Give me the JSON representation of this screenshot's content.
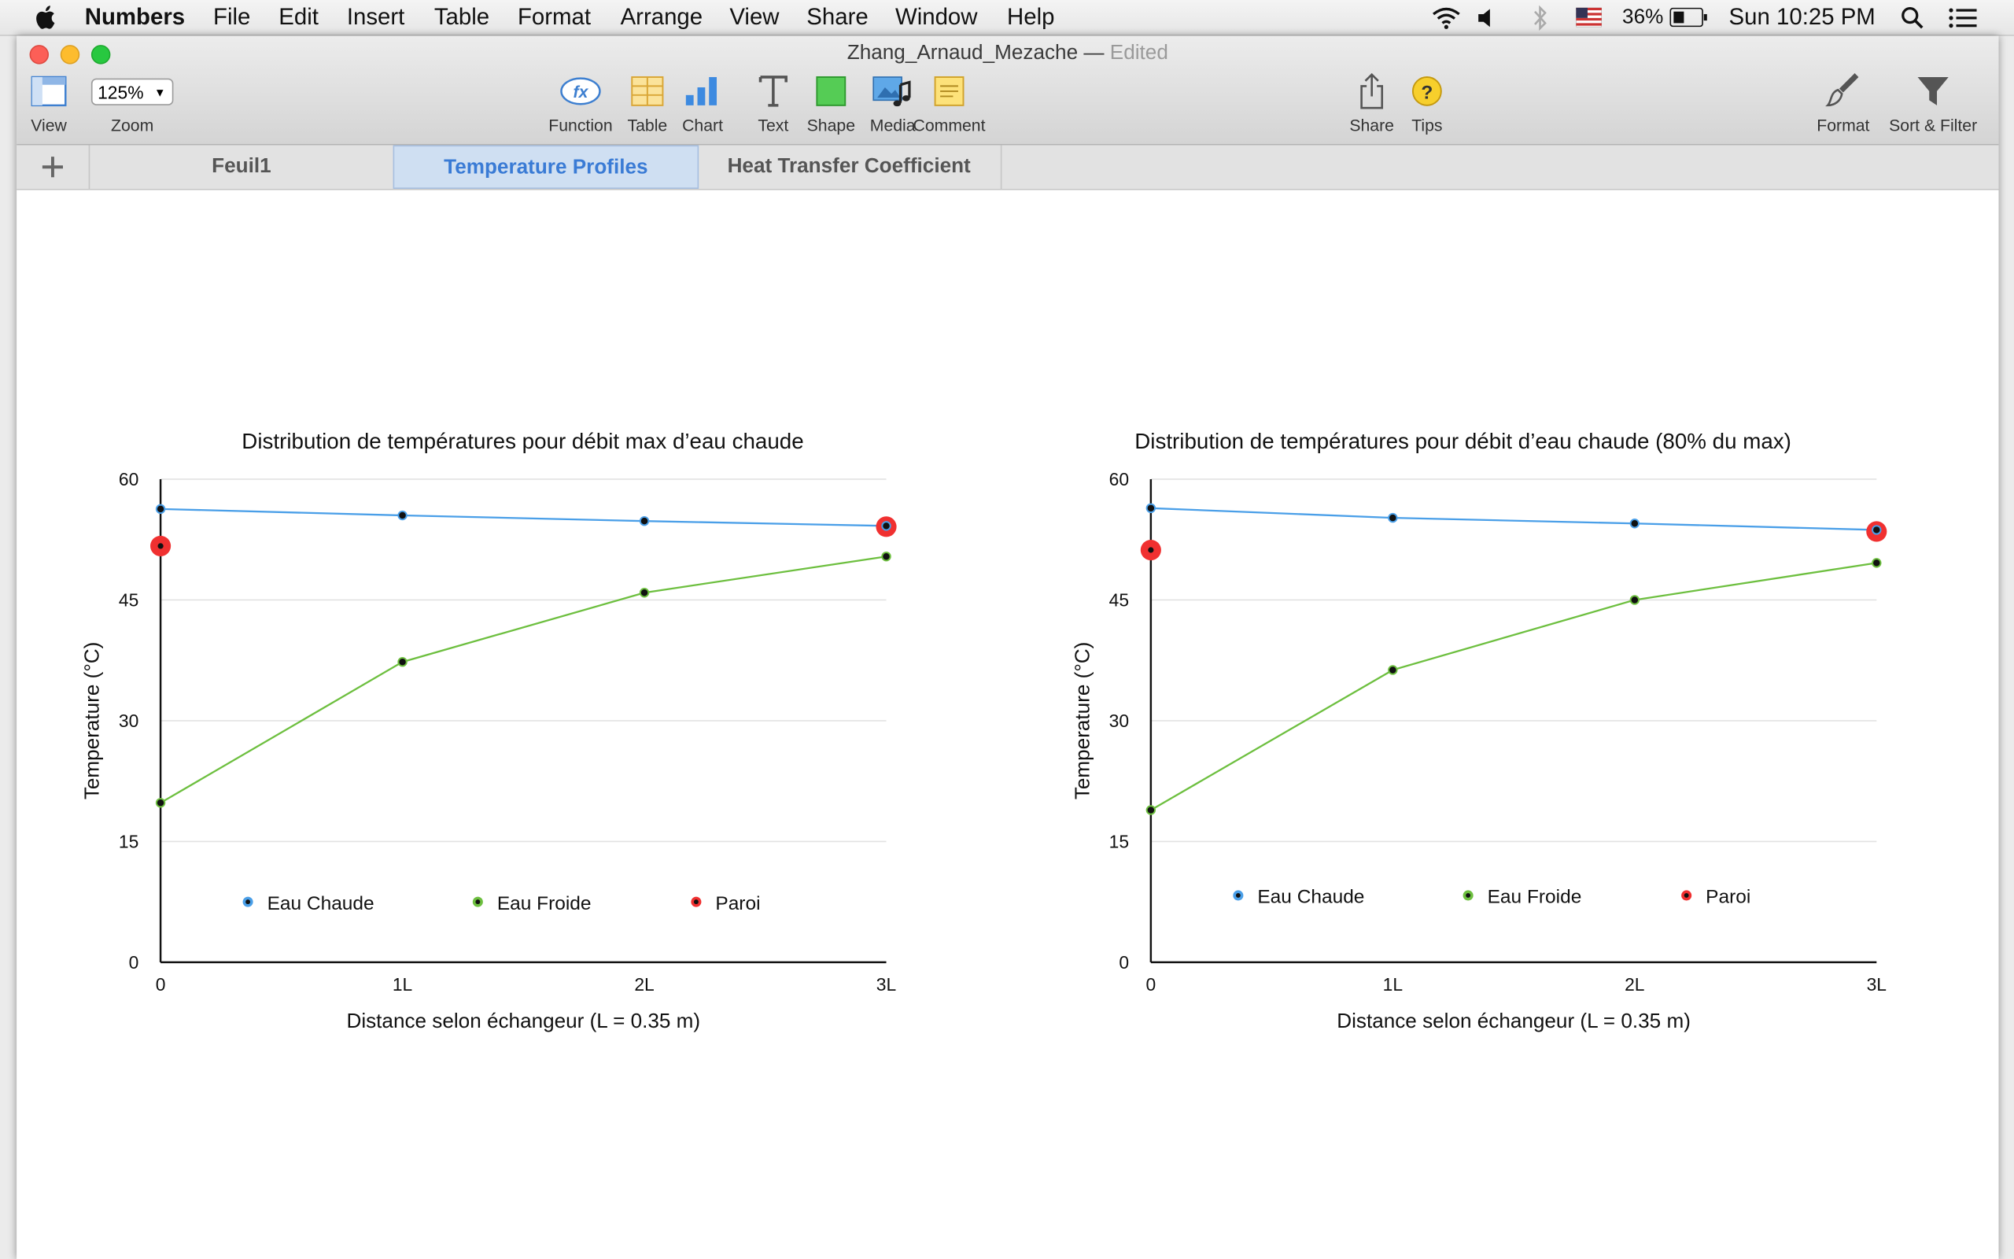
{
  "menubar": {
    "app": "Numbers",
    "items": [
      "File",
      "Edit",
      "Insert",
      "Table",
      "Format",
      "Arrange",
      "View",
      "Share",
      "Window",
      "Help"
    ],
    "battery": "36%",
    "clock": "Sun 10:25 PM"
  },
  "window": {
    "title": "Zhang_Arnaud_Mezache",
    "separator": "—",
    "status": "Edited"
  },
  "toolbar": {
    "view": "View",
    "zoom_value": "125%",
    "zoom": "Zoom",
    "function": "Function",
    "function_glyph": "fx",
    "table": "Table",
    "chart": "Chart",
    "text": "Text",
    "shape": "Shape",
    "media": "Media",
    "comment": "Comment",
    "share": "Share",
    "tips": "Tips",
    "format": "Format",
    "sort_filter": "Sort & Filter"
  },
  "tabs": [
    {
      "label": "Feuil1",
      "active": false
    },
    {
      "label": "Temperature Profiles",
      "active": true
    },
    {
      "label": "Heat Transfer Coefficient",
      "active": false
    }
  ],
  "colors": {
    "eau_chaude": "#4a9fe8",
    "eau_froide": "#6dbf3f",
    "paroi": "#f03030",
    "tab_active": "#3a7bd5"
  },
  "chart_data": [
    {
      "type": "line",
      "title": "Distribution de températures pour débit max d’eau chaude",
      "xlabel": "Distance selon échangeur (L = 0.35 m)",
      "ylabel": "Temperature (°C)",
      "categories": [
        "0",
        "1L",
        "2L",
        "3L"
      ],
      "yticks": [
        "0",
        "15",
        "30",
        "45",
        "60"
      ],
      "ylim": [
        0,
        60
      ],
      "grid": true,
      "legend": "bottom-inside",
      "series": [
        {
          "name": "Eau Chaude",
          "values": [
            56.3,
            55.5,
            54.8,
            54.2
          ]
        },
        {
          "name": "Eau Froide",
          "values": [
            19.8,
            37.3,
            45.9,
            50.4
          ]
        },
        {
          "name": "Paroi",
          "values": [
            51.7,
            null,
            null,
            54.1
          ]
        }
      ]
    },
    {
      "type": "line",
      "title": "Distribution de températures pour débit d’eau chaude (80% du max)",
      "xlabel": "Distance selon échangeur (L = 0.35 m)",
      "ylabel": "Temperature (°C)",
      "categories": [
        "0",
        "1L",
        "2L",
        "3L"
      ],
      "yticks": [
        "0",
        "15",
        "30",
        "45",
        "60"
      ],
      "ylim": [
        0,
        60
      ],
      "grid": true,
      "legend": "bottom-inside",
      "series": [
        {
          "name": "Eau Chaude",
          "values": [
            56.4,
            55.2,
            54.5,
            53.7
          ]
        },
        {
          "name": "Eau Froide",
          "values": [
            18.9,
            36.3,
            45.0,
            49.6
          ]
        },
        {
          "name": "Paroi",
          "values": [
            51.2,
            null,
            null,
            53.5
          ]
        }
      ]
    }
  ]
}
